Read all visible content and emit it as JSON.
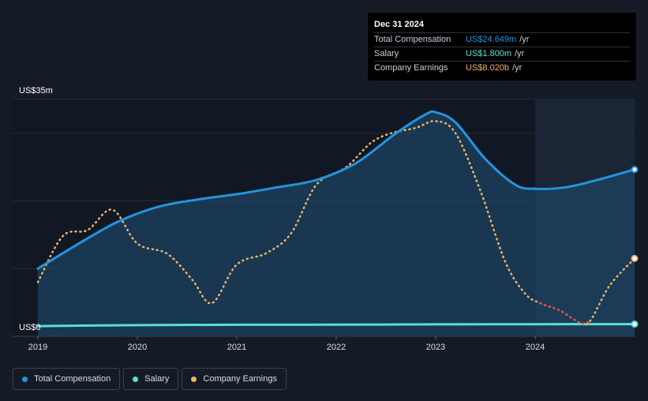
{
  "tooltip": {
    "date": "Dec 31 2024",
    "rows": [
      {
        "label": "Total Compensation",
        "value": "US$24.649m",
        "unit": "/yr",
        "color": "#2394df"
      },
      {
        "label": "Salary",
        "value": "US$1.800m",
        "unit": "/yr",
        "color": "#58e0d0"
      },
      {
        "label": "Company Earnings",
        "value": "US$8.020b",
        "unit": "/yr",
        "color": "#e9b46a"
      }
    ]
  },
  "legend": [
    {
      "label": "Total Compensation",
      "color": "#2394df"
    },
    {
      "label": "Salary",
      "color": "#58e0d0"
    },
    {
      "label": "Company Earnings",
      "color": "#e9b46a"
    }
  ],
  "chart_data": {
    "type": "line",
    "y_top_label": "US$35m",
    "y_bottom_label": "US$0",
    "ylim": [
      0,
      35
    ],
    "xlim": [
      2019.0,
      2025.0
    ],
    "x_ticks": [
      "2019",
      "2020",
      "2021",
      "2022",
      "2023",
      "2024"
    ],
    "x_tick_values": [
      2019,
      2020,
      2021,
      2022,
      2023,
      2024
    ],
    "forecast_start": 2024.0,
    "negative_earnings_color": "#e0464f",
    "series": [
      {
        "name": "Total Compensation",
        "color": "#2394df",
        "x": [
          2019.0,
          2019.4,
          2019.8,
          2020.2,
          2020.6,
          2021.0,
          2021.4,
          2021.8,
          2022.2,
          2022.6,
          2022.9,
          2023.0,
          2023.2,
          2023.5,
          2023.8,
          2024.0,
          2024.3,
          2024.6,
          2025.0
        ],
        "y": [
          10.0,
          13.6,
          16.9,
          19.1,
          20.2,
          21.0,
          22.0,
          23.1,
          25.6,
          30.0,
          32.8,
          33.1,
          31.6,
          26.2,
          22.4,
          21.8,
          22.0,
          23.0,
          24.65
        ]
      },
      {
        "name": "Salary",
        "color": "#58e0d0",
        "x": [
          2019.0,
          2020.0,
          2021.0,
          2022.0,
          2023.0,
          2024.0,
          2025.0
        ],
        "y": [
          1.5,
          1.65,
          1.7,
          1.72,
          1.76,
          1.78,
          1.8
        ]
      },
      {
        "name": "Company Earnings",
        "color": "#e9b46a",
        "dashed": true,
        "x": [
          2019.0,
          2019.25,
          2019.5,
          2019.75,
          2020.0,
          2020.3,
          2020.55,
          2020.75,
          2021.0,
          2021.3,
          2021.55,
          2021.8,
          2022.1,
          2022.35,
          2022.55,
          2022.8,
          2023.0,
          2023.2,
          2023.45,
          2023.7,
          2023.9,
          2024.05,
          2024.25,
          2024.45,
          2024.55,
          2024.75,
          2025.0
        ],
        "y": [
          8.0,
          14.8,
          15.7,
          18.7,
          13.7,
          12.2,
          8.4,
          4.9,
          10.6,
          12.3,
          15.3,
          22.4,
          25.0,
          28.6,
          30.0,
          30.8,
          31.8,
          30.0,
          21.5,
          11.0,
          6.3,
          4.9,
          3.8,
          2.0,
          2.2,
          7.5,
          11.5
        ]
      }
    ]
  }
}
